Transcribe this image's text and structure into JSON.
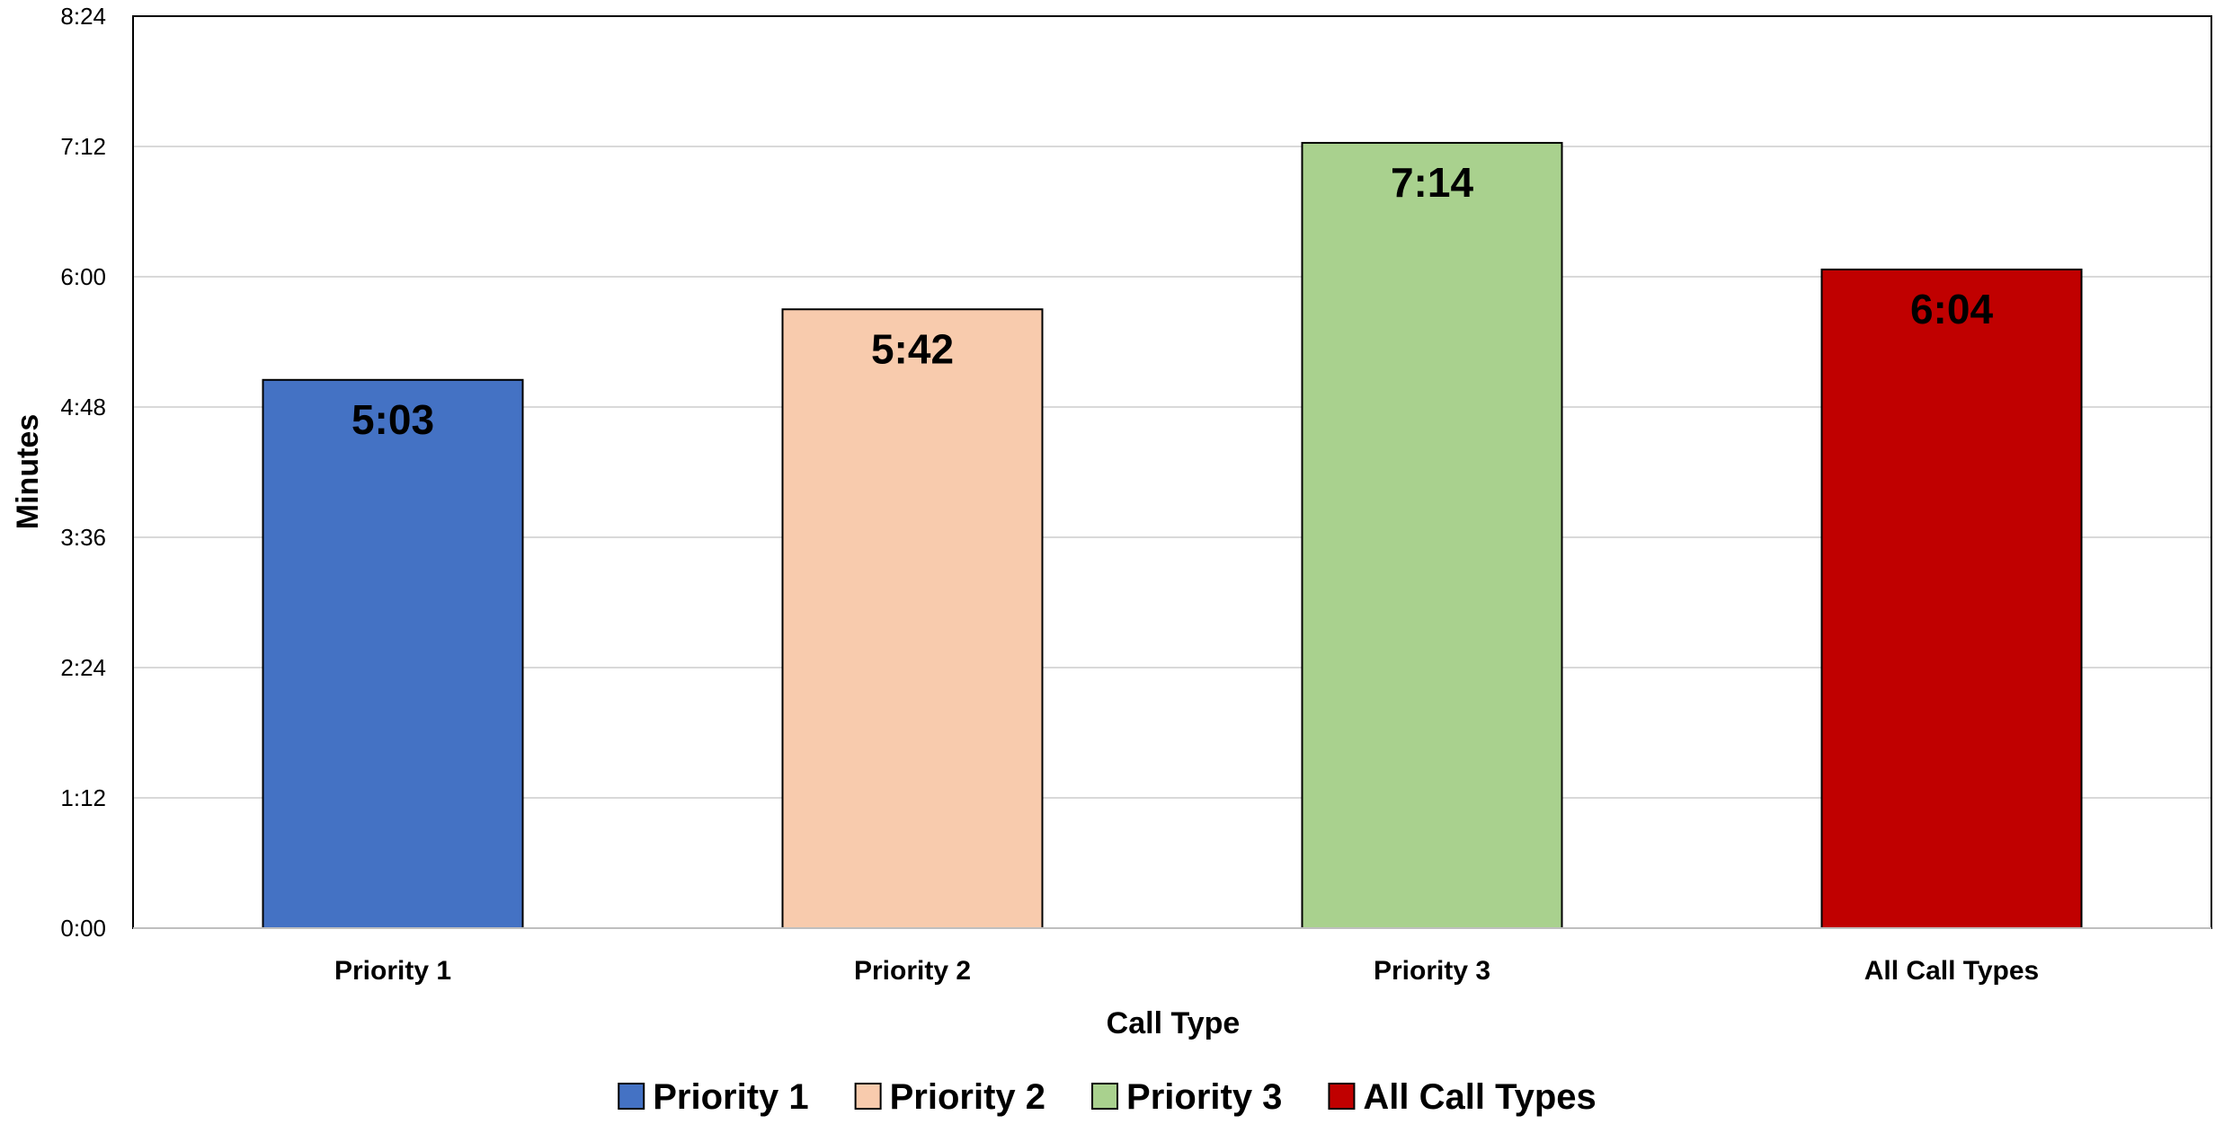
{
  "chart_data": {
    "type": "bar",
    "title": "",
    "xlabel": "Call Type",
    "ylabel": "Minutes",
    "categories": [
      "Priority 1",
      "Priority 2",
      "Priority 3",
      "All Call Types"
    ],
    "values": [
      303,
      342,
      434,
      364
    ],
    "value_labels": [
      "5:03",
      "5:42",
      "7:14",
      "6:04"
    ],
    "value_unit": "seconds",
    "colors": [
      "#4472C4",
      "#F8CBAD",
      "#A9D18E",
      "#C00000"
    ],
    "ylim": [
      0,
      504
    ],
    "yticks": [
      0,
      72,
      144,
      216,
      288,
      360,
      432,
      504
    ],
    "ytick_labels": [
      "0:00",
      "1:12",
      "2:24",
      "3:36",
      "4:48",
      "6:00",
      "7:12",
      "8:24"
    ],
    "grid": true,
    "legend": {
      "position": "bottom",
      "entries": [
        "Priority 1",
        "Priority 2",
        "Priority 3",
        "All Call Types"
      ]
    }
  }
}
